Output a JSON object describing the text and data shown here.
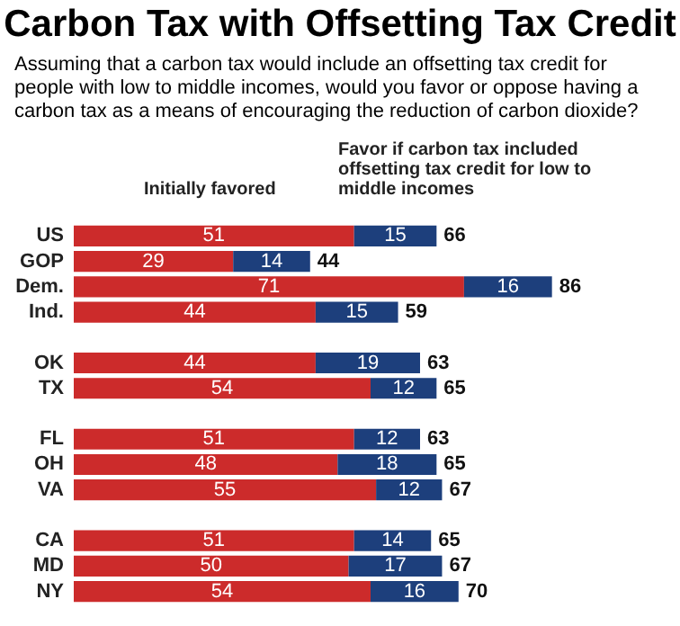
{
  "chart_data": {
    "type": "bar",
    "orientation": "horizontal",
    "stacked": true,
    "title": "Carbon Tax with Offsetting Tax Credit",
    "subtitle": "Assuming that a carbon tax would include an offsetting tax credit for people with low to middle incomes, would you favor or oppose having a carbon tax as a means of encouraging the reduction of carbon dioxide?",
    "categories": [
      "US",
      "GOP",
      "Dem.",
      "Ind.",
      null,
      "OK",
      "TX",
      null,
      "FL",
      "OH",
      "VA",
      null,
      "CA",
      "MD",
      "NY"
    ],
    "series": [
      {
        "name": "Initially favored",
        "color": "#cc2b2b",
        "values": [
          51,
          29,
          71,
          44,
          null,
          44,
          54,
          null,
          51,
          48,
          55,
          null,
          51,
          50,
          54
        ]
      },
      {
        "name": "Favor if carbon tax included offsetting tax credit for low to middle incomes",
        "color": "#1d3f7c",
        "values": [
          15,
          14,
          16,
          15,
          null,
          19,
          12,
          null,
          12,
          18,
          12,
          null,
          14,
          17,
          16
        ]
      }
    ],
    "data_labels": true,
    "totals": [
      "66",
      "44",
      "86",
      "59",
      null,
      "63",
      "65",
      null,
      "63",
      "65",
      "67",
      null,
      "65",
      "67",
      "70"
    ]
  }
}
